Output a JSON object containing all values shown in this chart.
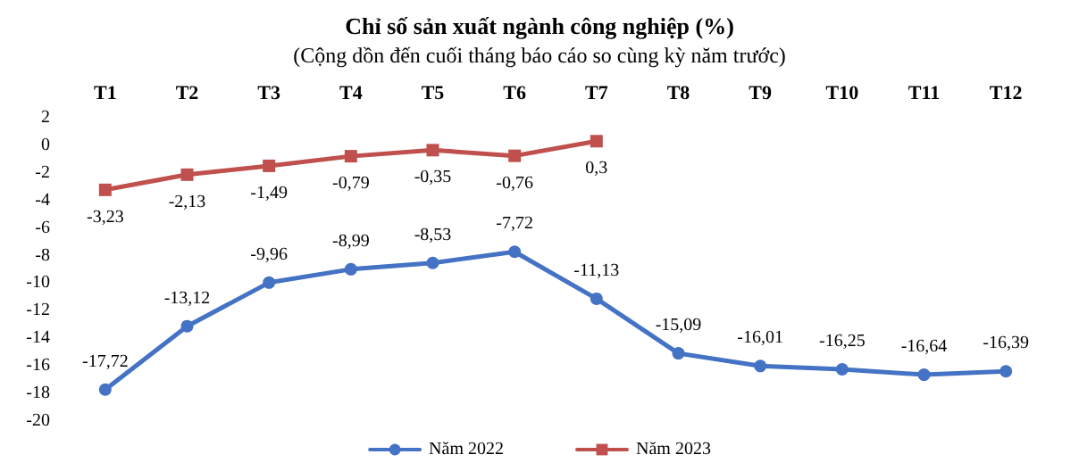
{
  "chart_data": {
    "type": "line",
    "title": "Chỉ số sản xuất ngành công nghiệp (%)",
    "subtitle": "(Cộng dồn đến cuối tháng báo cáo so cùng kỳ năm trước)",
    "categories": [
      "T1",
      "T2",
      "T3",
      "T4",
      "T5",
      "T6",
      "T7",
      "T8",
      "T9",
      "T10",
      "T11",
      "T12"
    ],
    "series": [
      {
        "name": "Năm 2022",
        "color": "#4472c4",
        "marker": "circle",
        "values": [
          -17.72,
          -13.12,
          -9.96,
          -8.99,
          -8.53,
          -7.72,
          -11.13,
          -15.09,
          -16.01,
          -16.25,
          -16.64,
          -16.39
        ],
        "value_labels": [
          "-17,72",
          "-13,12",
          "-9,96",
          "-8,99",
          "-8,53",
          "-7,72",
          "-11,13",
          "-15,09",
          "-16,01",
          "-16,25",
          "-16,64",
          "-16,39"
        ]
      },
      {
        "name": "Năm 2023",
        "color": "#c0504d",
        "marker": "square",
        "values": [
          -3.23,
          -2.13,
          -1.49,
          -0.79,
          -0.35,
          -0.76,
          0.3,
          null,
          null,
          null,
          null,
          null
        ],
        "value_labels": [
          "-3,23",
          "-2,13",
          "-1,49",
          "-0,79",
          "-0,35",
          "-0,76",
          "0,3",
          null,
          null,
          null,
          null,
          null
        ]
      }
    ],
    "ylim": [
      -20,
      2
    ],
    "yticks": [
      -20,
      -18,
      -16,
      -14,
      -12,
      -10,
      -8,
      -6,
      -4,
      -2,
      0,
      2
    ],
    "grid": false,
    "legend": "bottom",
    "line_style": "solid"
  }
}
